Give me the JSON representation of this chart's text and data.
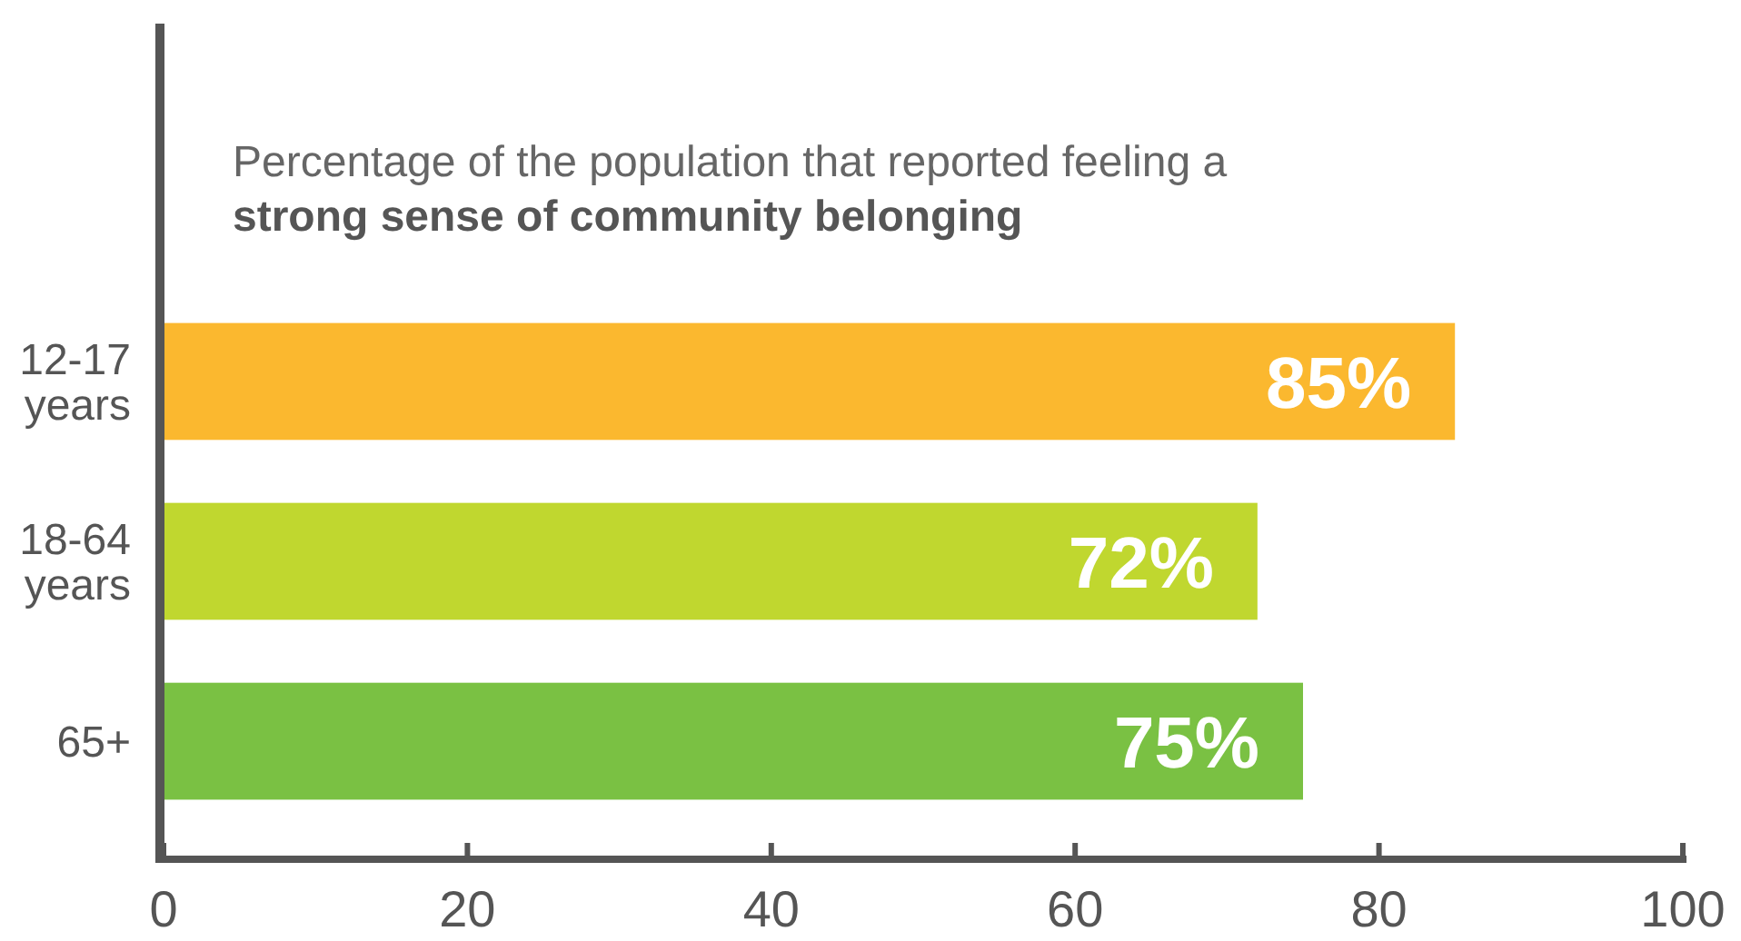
{
  "chart_data": {
    "type": "bar",
    "orientation": "horizontal",
    "title": "Percentage of the population that reported feeling a",
    "subtitle": "strong sense of community belonging",
    "categories": [
      "12-17 years",
      "18-64 years",
      "65+"
    ],
    "values": [
      85,
      72,
      75
    ],
    "colors": [
      "#fbb82f",
      "#c0d72f",
      "#7ac143"
    ],
    "value_labels": [
      "85%",
      "72%",
      "75%"
    ],
    "xlim": [
      0,
      100
    ],
    "xticks": [
      0,
      20,
      40,
      60,
      80,
      100
    ],
    "grid": false
  }
}
